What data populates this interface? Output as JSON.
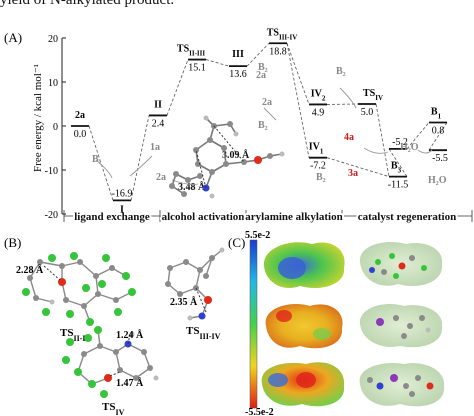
{
  "caption_fragment": "yield of N-alkylated product.",
  "panels": {
    "a": "(A)",
    "b": "(B)",
    "c": "(C)"
  },
  "y_axis": {
    "label": "Free energy / kcal mol⁻¹",
    "ticks": [
      "20",
      "10",
      "0",
      "-10",
      "-20"
    ]
  },
  "stages": [
    "ligand exchange",
    "alcohol activation",
    "arylamine alkylation",
    "catalyst regeneration"
  ],
  "chart_data": {
    "type": "energy_profile",
    "ylim": [
      -20,
      20
    ],
    "ylabel": "Free energy / kcal mol⁻¹",
    "states": [
      {
        "name": "2a",
        "sub": "",
        "energy": 0.0,
        "label": "0.0"
      },
      {
        "name": "I",
        "sub": "",
        "energy": -16.9,
        "label": "-16.9"
      },
      {
        "name": "II",
        "sub": "",
        "energy": 2.4,
        "label": "2.4"
      },
      {
        "name": "TS",
        "sub": "II-III",
        "energy": 15.1,
        "label": "15.1"
      },
      {
        "name": "III",
        "sub": "",
        "energy": 13.6,
        "label": "13.6"
      },
      {
        "name": "TS",
        "sub": "III-IV",
        "energy": 18.8,
        "label": "18.8"
      },
      {
        "name": "IV",
        "sub": "2",
        "energy": 4.9,
        "label": "4.9"
      },
      {
        "name": "IV",
        "sub": "1",
        "energy": -7.2,
        "label": "-7.2"
      },
      {
        "name": "TS",
        "sub": "IV",
        "energy": 5.0,
        "label": "5.0"
      },
      {
        "name": "B",
        "sub": "3",
        "energy": -11.5,
        "label": "-11.5"
      },
      {
        "name": "",
        "sub": "",
        "energy": -5.2,
        "label": "-5.2"
      },
      {
        "name": "B",
        "sub": "1",
        "energy": 0.8,
        "label": "0.8"
      },
      {
        "name": "",
        "sub": "",
        "energy": -5.5,
        "label": "-5.5"
      }
    ],
    "annotations": [
      "B₁",
      "1a",
      "2a",
      "3.09 Å",
      "3.48 Å",
      "2a",
      "B₂",
      "2a",
      "B₂",
      "B₂",
      "4a",
      "H₂O",
      "H₂O",
      "B₂",
      "3a"
    ]
  },
  "panel_b_labels": {
    "ts1": "TS",
    "ts1_sub": "II-III",
    "ts2": "TS",
    "ts2_sub": "III-IV",
    "ts3": "TS",
    "ts3_sub": "IV",
    "d1": "2.28 Å",
    "d2": "2.35 Å",
    "d3": "1.24 Å",
    "d4": "1.47 Å"
  },
  "colorbar": {
    "top": "5.5e-2",
    "bottom": "-5.5e-2"
  },
  "colors": {
    "esp_blue": "#2b63d8",
    "esp_red": "#e0261a",
    "esp_green": "#3fb84a",
    "esp_yellow": "#f1d330",
    "atom_green": "#36c43a",
    "atom_red": "#e02a1a",
    "atom_blue": "#3040d0",
    "atom_grey": "#8a8a8a",
    "label_red": "#d11a1a"
  }
}
